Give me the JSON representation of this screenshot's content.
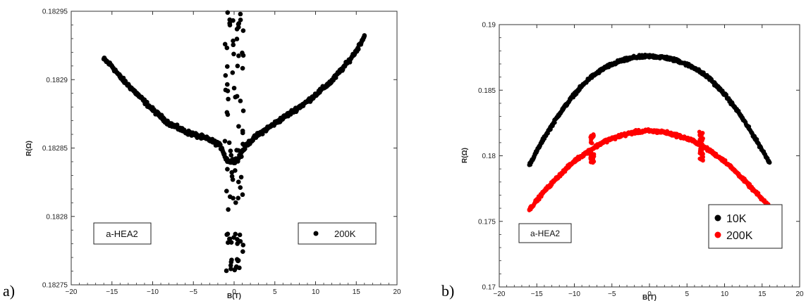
{
  "panels": [
    {
      "letter": "a)",
      "sample_label": "a-HEA2",
      "chart_data": {
        "type": "scatter",
        "xlabel": "B(T)",
        "ylabel": "R(Ω)",
        "xlim": [
          -20,
          20
        ],
        "ylim": [
          0.18275,
          0.18295
        ],
        "x_ticks": [
          "−20",
          "−15",
          "−10",
          "−5",
          "0",
          "5",
          "10",
          "15",
          "20"
        ],
        "y_ticks": [
          "0.18275",
          "0.1828",
          "0.18285",
          "0.1829",
          "0.18295"
        ],
        "legend_position": "bottom-right",
        "series": [
          {
            "name": "200K",
            "color": "#000000",
            "x": [
              -16,
              -15,
              -14,
              -13,
              -12,
              -11,
              -10,
              -9,
              -8,
              -7,
              -6,
              -5,
              -4,
              -3,
              -2,
              -1.5,
              -1,
              -0.5,
              0,
              0.5,
              1,
              1.5,
              2,
              3,
              4,
              5,
              6,
              7,
              8,
              9,
              10,
              11,
              12,
              13,
              14,
              15,
              16
            ],
            "y": [
              0.182915,
              0.18291,
              0.182902,
              0.182896,
              0.18289,
              0.182884,
              0.182878,
              0.182873,
              0.182868,
              0.182865,
              0.182862,
              0.18286,
              0.182858,
              0.182856,
              0.182853,
              0.18285,
              0.182842,
              0.18284,
              0.182841,
              0.182842,
              0.182848,
              0.182852,
              0.182855,
              0.18286,
              0.182864,
              0.182868,
              0.182872,
              0.182876,
              0.18288,
              0.182884,
              0.182889,
              0.182894,
              0.182899,
              0.182906,
              0.182913,
              0.182921,
              0.182932
            ]
          }
        ]
      }
    },
    {
      "letter": "b)",
      "sample_label": "a-HEA2",
      "chart_data": {
        "type": "scatter",
        "xlabel": "B(T)",
        "ylabel": "R(Ω)",
        "xlim": [
          -20,
          20
        ],
        "ylim": [
          0.17,
          0.19
        ],
        "x_ticks": [
          "−20",
          "−15",
          "−10",
          "−5",
          "0",
          "5",
          "10",
          "15",
          "20"
        ],
        "y_ticks": [
          "0.17",
          "0.175",
          "0.18",
          "0.185",
          "0.19"
        ],
        "legend_position": "bottom-right",
        "series": [
          {
            "name": "10K",
            "color": "#000000",
            "x": [
              -16,
              -14,
              -12,
              -10,
              -8,
              -6,
              -4,
              -2,
              0,
              2,
              4,
              6,
              8,
              10,
              12,
              14,
              16
            ],
            "y": [
              0.1793,
              0.1814,
              0.1832,
              0.1847,
              0.1859,
              0.1867,
              0.1872,
              0.1875,
              0.1876,
              0.1875,
              0.1872,
              0.1867,
              0.1859,
              0.1847,
              0.1832,
              0.1814,
              0.1795
            ]
          },
          {
            "name": "200K",
            "color": "#ff0000",
            "x": [
              -16,
              -14,
              -12,
              -10,
              -8,
              -6,
              -4,
              -2,
              0,
              2,
              4,
              6,
              8,
              10,
              12,
              14,
              16
            ],
            "y": [
              0.1759,
              0.1773,
              0.1785,
              0.1796,
              0.1804,
              0.1811,
              0.1815,
              0.1818,
              0.1819,
              0.1818,
              0.1815,
              0.1811,
              0.1804,
              0.1796,
              0.1785,
              0.1773,
              0.1761
            ]
          }
        ]
      }
    }
  ]
}
